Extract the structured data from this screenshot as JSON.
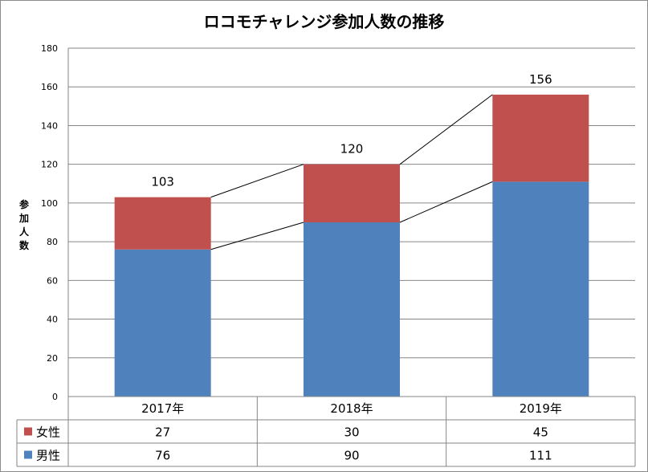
{
  "chart_data": {
    "type": "bar",
    "stacked": true,
    "title": "ロコモチャレンジ参加人数の推移",
    "ylabel": "参加人数",
    "ylim": [
      0,
      180
    ],
    "yticks": [
      0,
      20,
      40,
      60,
      80,
      100,
      120,
      140,
      160,
      180
    ],
    "grid": true,
    "categories": [
      "2017年",
      "2018年",
      "2019年"
    ],
    "series": [
      {
        "name": "男性",
        "values": [
          76,
          90,
          111
        ],
        "color": "#4f81bd"
      },
      {
        "name": "女性",
        "values": [
          27,
          30,
          45
        ],
        "color": "#c0504d"
      }
    ],
    "totals": [
      103,
      120,
      156
    ],
    "series_lines": true,
    "data_table": true,
    "data_table_order": [
      "女性",
      "男性"
    ]
  }
}
